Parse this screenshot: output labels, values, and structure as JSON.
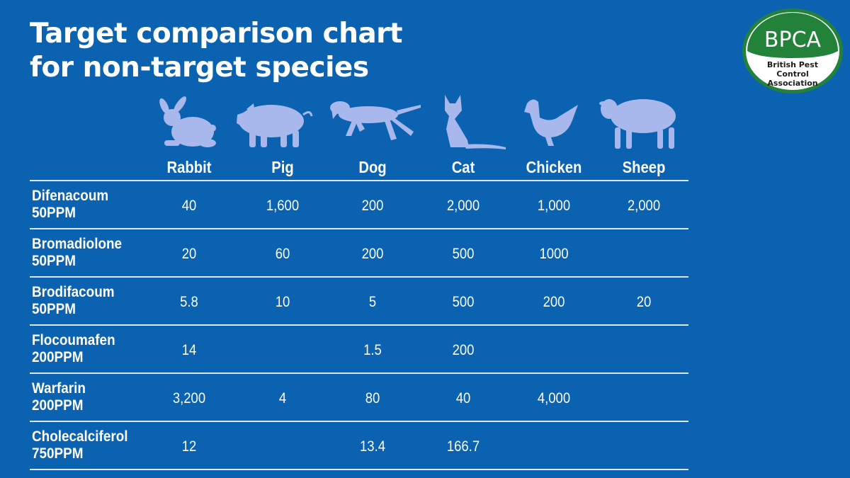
{
  "title": [
    "Target comparison chart",
    "for non-target species"
  ],
  "logo": {
    "text": "BPCA",
    "subtitle": [
      "British Pest",
      "Control",
      "Association"
    ],
    "colors": {
      "green": "#22823a",
      "ring_bg": "#ffffff"
    }
  },
  "colors": {
    "background": "#0a62b0",
    "silhouette": "#a9b8ec",
    "text": "#ffffff",
    "rule": "#dbe7f5"
  },
  "animal_icons": [
    "rabbit-icon",
    "pig-icon",
    "dog-icon",
    "cat-icon",
    "chicken-icon",
    "sheep-icon"
  ],
  "chart_data": {
    "type": "table",
    "title": "Target comparison chart for non-target species",
    "columns": [
      "Rabbit",
      "Pig",
      "Dog",
      "Cat",
      "Chicken",
      "Sheep"
    ],
    "rows": [
      {
        "name": [
          "Difenacoum",
          "50PPM"
        ],
        "values": [
          "40",
          "1,600",
          "200",
          "2,000",
          "1,000",
          "2,000"
        ]
      },
      {
        "name": [
          "Bromadiolone",
          "50PPM"
        ],
        "values": [
          "20",
          "60",
          "200",
          "500",
          "1000",
          ""
        ]
      },
      {
        "name": [
          "Brodifacoum",
          "50PPM"
        ],
        "values": [
          "5.8",
          "10",
          "5",
          "500",
          "200",
          "20"
        ]
      },
      {
        "name": [
          "Flocoumafen",
          "200PPM"
        ],
        "values": [
          "14",
          "",
          "1.5",
          "200",
          "",
          ""
        ]
      },
      {
        "name": [
          "Warfarin",
          "200PPM"
        ],
        "values": [
          "3,200",
          "4",
          "80",
          "40",
          "4,000",
          ""
        ]
      },
      {
        "name": [
          "Cholecalciferol",
          "750PPM"
        ],
        "values": [
          "12",
          "",
          "13.4",
          "166.7",
          "",
          ""
        ]
      }
    ]
  }
}
